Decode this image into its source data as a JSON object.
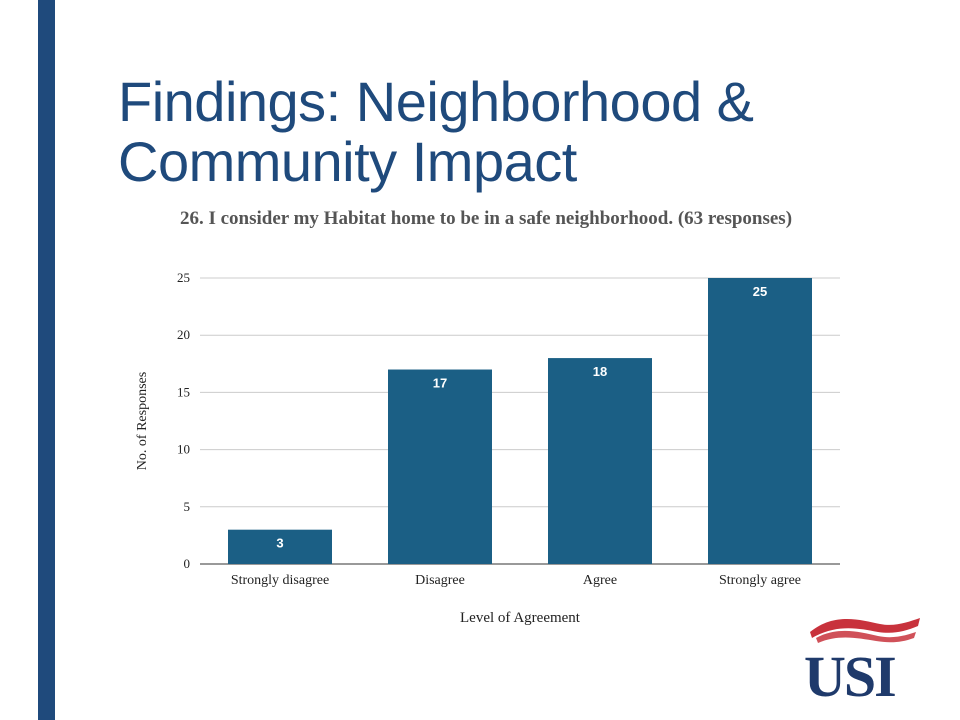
{
  "slide": {
    "title_line1": "Findings: Neighborhood &",
    "title_line2": "Community Impact"
  },
  "colors": {
    "sidebar": "#1f4a7c",
    "title": "#1f4a7c",
    "bar": "#1b5f85",
    "logo_blue": "#1f3a6b",
    "logo_red": "#c8323c"
  },
  "logo": {
    "text": "USI",
    "icon": "usi-logo-flag-icon"
  },
  "chart_data": {
    "type": "bar",
    "title": "26. I consider my Habitat home to be in a safe neighborhood. (63 responses)",
    "categories": [
      "Strongly disagree",
      "Disagree",
      "Agree",
      "Strongly agree"
    ],
    "values": [
      3,
      17,
      18,
      25
    ],
    "xlabel": "Level of Agreement",
    "ylabel": "No. of Responses",
    "ylim": [
      0,
      25
    ],
    "yticks": [
      0,
      5,
      10,
      15,
      20,
      25
    ],
    "grid": true,
    "legend": "none",
    "data_labels": true
  }
}
